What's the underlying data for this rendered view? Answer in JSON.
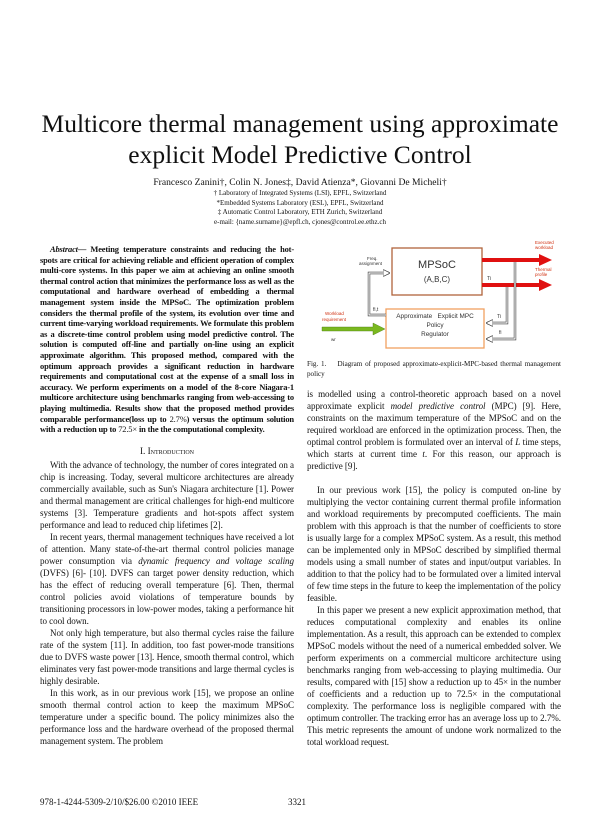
{
  "title": {
    "line1": "Multicore thermal management using approximate",
    "line2": "explicit Model Predictive Control"
  },
  "authors": "Francesco Zanini†, Colin N. Jones‡, David Atienza*, Giovanni De Micheli†",
  "affiliations": [
    "† Laboratory of Integrated Systems (LSI), EPFL, Switzerland",
    "*Embedded Systems Laboratory (ESL), EPFL, Switzerland",
    "‡ Automatic Control Laboratory, ETH Zurich, Switzerland",
    "e-mail: {name.surname}@epfl.ch, cjones@control.ee.ethz.ch"
  ],
  "abstract": {
    "label": "Abstract",
    "text": "— Meeting temperature constraints and reducing the hot-spots are critical for achieving reliable and efficient operation of complex multi-core systems. In this paper we aim at achieving an online smooth thermal control action that minimizes the performance loss as well as the computational and hardware overhead of embedding a thermal management system inside the MPSoC. The optimization problem considers the thermal profile of the system, its evolution over time and current time-varying workload requirements. We formulate this problem as a discrete-time control problem using model predictive control. The solution is computed off-line and partially on-line using an explicit approximate algorithm. This proposed method, compared with the optimum approach provides a significant reduction in hardware requirements and computational cost at the expense of a small loss in accuracy. We perform experiments on a model of the 8-core Niagara-1 multicore architecture using benchmarks ranging from web-accessing to playing multimedia. Results show that the proposed method provides comparable performance(loss up to ",
    "loss": "2.7%",
    "text2": ") versus the optimum solution with a reduction up to ",
    "reduction": "72.5×",
    "text3": " in the the computational complexity."
  },
  "section": {
    "number": "I.",
    "title": "Introduction"
  },
  "left_paragraphs": [
    "With the advance of technology, the number of cores integrated on a chip is increasing. Today, several multicore architectures are already commercially available, such as Sun's Niagara architecture [1]. Power and thermal management are critical challenges for high-end multicore systems [3]. Temperature gradients and hot-spots affect system performance and lead to reduced chip lifetimes [2].",
    {
      "a": "In recent years, thermal management techniques have received a lot of attention. Many state-of-the-art thermal control policies manage power consumption via ",
      "em": "dynamic frequency and voltage scaling",
      "b": " (DVFS) [6]- [10]. DVFS can target power density reduction, which has the effect of reducing overall temperature [6]. Then, thermal control policies avoid violations of temperature bounds by transitioning processors in low-power modes, taking a performance hit to cool down."
    },
    "Not only high temperature, but also thermal cycles raise the failure rate of the system [11]. In addition, too fast power-mode transitions due to DVFS waste power [13]. Hence, smooth thermal control, which eliminates very fast power-mode transitions and large thermal cycles is highly desirable.",
    "In this work, as in our previous work [15], we propose an online smooth thermal control action to keep the maximum MPSoC temperature under a specific bound. The policy minimizes also the performance loss and the hardware overhead of the proposed thermal management system. The problem"
  ],
  "right_paragraphs": [
    {
      "a": "is modelled using a control-theoretic approach based on a novel approximate explicit ",
      "em": "model predictive control",
      "b": " (MPC) [9]. Here, constraints on the maximum temperature of the MPSoC and on the required workload are enforced in the optimization process. Then, the optimal control problem is formulated over an interval of ",
      "em2": "L",
      "c": " time steps, which starts at current time ",
      "em3": "t",
      "d": ". For this reason, our approach is predictive [9]."
    },
    "In our previous work [15], the policy is computed on-line by multiplying the vector containing current thermal profile information and workload requirements by precomputed coefficients. The main problem with this approach is that the number of coefficients to store is usually large for a complex MPSoC system. As a result, this method can be implemented only in MPSoC described by simplified thermal models using a small number of states and input/output variables. In addition to that the policy had to be formulated over a limited interval of few time steps in the future to keep the implementation of the policy feasible.",
    "In this paper we present a new explicit approximation method, that reduces computational complexity and enables its online implementation. As a result, this approach can be extended to complex MPSoC models without the need of a numerical embedded solver. We perform experiments on a commercial multicore architecture using benchmarks ranging from web-accessing to playing multimedia. Our results, compared with [15] show a reduction up to 45× in the number of coefficients and a reduction up to 72.5× in the computational complexity. The performance loss is negligible compared with the optimum controller. The tracking error has an average loss up to 2.7%. This metric represents the amount of undone work normalized to the total workload request."
  ],
  "figure": {
    "mpsoc_label": "MPSoC",
    "mpsoc_sub": "(A,B,C)",
    "controller_line1": "Approximate   Explicit MPC",
    "controller_line2": "Policy",
    "controller_line3": "Regulator",
    "freq_assignment": [
      "Freq.",
      "assignment"
    ],
    "executed_workload": [
      "Executed",
      "workload"
    ],
    "thermal_profile": [
      "Thermal",
      "profile"
    ],
    "workload_requirement": [
      "Workload",
      "requirement"
    ],
    "wr": "wr",
    "fit": "fi,t",
    "ti": "Ti",
    "ti2": "Ti",
    "fi": "fi",
    "colors": {
      "mpsoc_border": "#b0643c",
      "controller_border": "#f0a060",
      "output_arrow": "#e01010",
      "input_arrow": "#7ab820",
      "label_red": "#d03010"
    },
    "caption": "Fig. 1.    Diagram of proposed approximate-explicit-MPC-based thermal management policy"
  },
  "footer": {
    "isbn": "978-1-4244-5309-2/10/$26.00 ©2010 IEEE",
    "page": "3321"
  }
}
